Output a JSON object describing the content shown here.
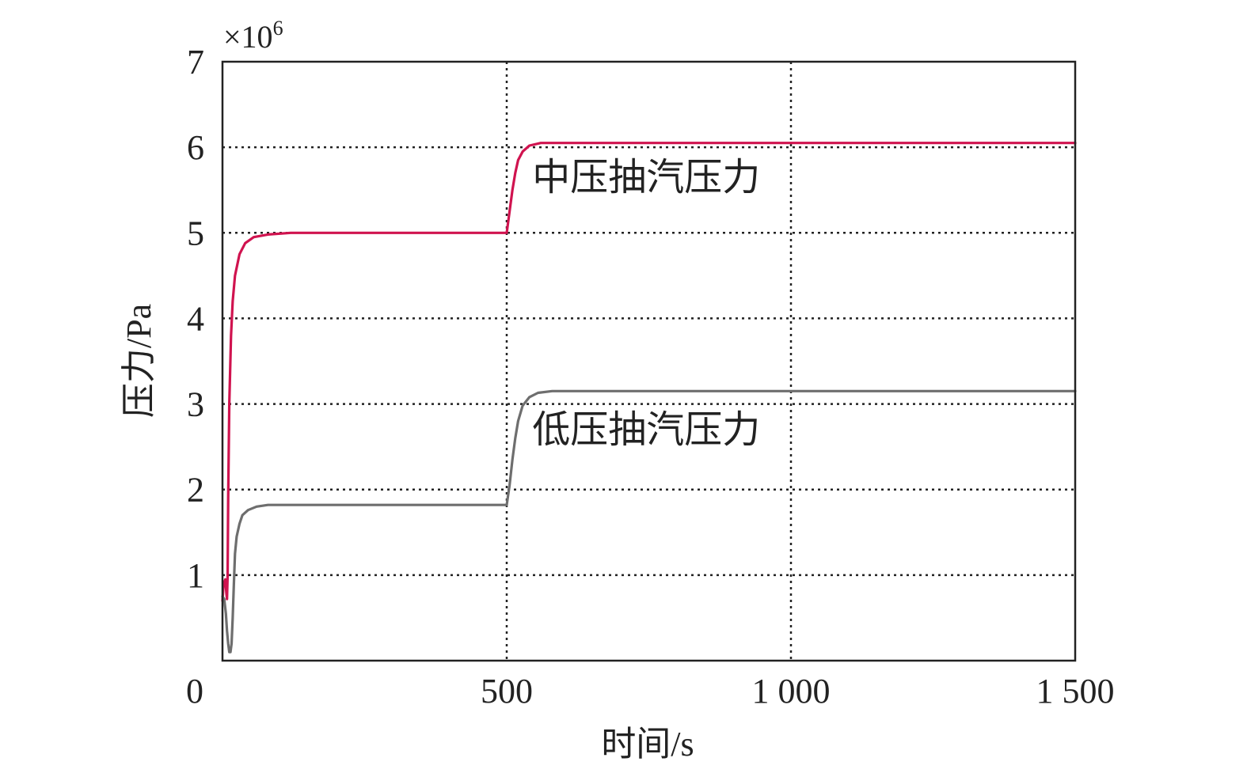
{
  "chart_data": {
    "type": "line",
    "xlabel": "时间/s",
    "ylabel": "压力/Pa",
    "y_multiplier": {
      "base": "×10",
      "exponent": "6"
    },
    "xlim": [
      0,
      1500
    ],
    "ylim": [
      0,
      7
    ],
    "x_ticks": [
      {
        "value": 0,
        "label": "0"
      },
      {
        "value": 500,
        "label": "500"
      },
      {
        "value": 1000,
        "label": "1 000"
      },
      {
        "value": 1500,
        "label": "1 500"
      }
    ],
    "y_ticks": [
      {
        "value": 1,
        "label": "1"
      },
      {
        "value": 2,
        "label": "2"
      },
      {
        "value": 3,
        "label": "3"
      },
      {
        "value": 4,
        "label": "4"
      },
      {
        "value": 5,
        "label": "5"
      },
      {
        "value": 6,
        "label": "6"
      },
      {
        "value": 7,
        "label": "7"
      }
    ],
    "grid": true,
    "grid_style": "dotted",
    "series": [
      {
        "name": "中压抽汽压力",
        "color": "#d0134f",
        "label_at": [
          545,
          5.5
        ],
        "points": [
          [
            0,
            0.7
          ],
          [
            2,
            0.9
          ],
          [
            5,
            0.95
          ],
          [
            7,
            0.78
          ],
          [
            8,
            0.72
          ],
          [
            9,
            1.0
          ],
          [
            10,
            1.9
          ],
          [
            12,
            3.0
          ],
          [
            15,
            3.8
          ],
          [
            18,
            4.2
          ],
          [
            22,
            4.5
          ],
          [
            30,
            4.75
          ],
          [
            40,
            4.88
          ],
          [
            55,
            4.95
          ],
          [
            80,
            4.98
          ],
          [
            120,
            5.0
          ],
          [
            300,
            5.0
          ],
          [
            499,
            5.0
          ],
          [
            500,
            5.0
          ],
          [
            505,
            5.25
          ],
          [
            510,
            5.5
          ],
          [
            515,
            5.7
          ],
          [
            520,
            5.85
          ],
          [
            528,
            5.95
          ],
          [
            540,
            6.02
          ],
          [
            560,
            6.05
          ],
          [
            600,
            6.05
          ],
          [
            1000,
            6.05
          ],
          [
            1500,
            6.05
          ]
        ]
      },
      {
        "name": "低压抽汽压力",
        "color": "#6e6e6e",
        "label_at": [
          545,
          2.55
        ],
        "points": [
          [
            0,
            0.75
          ],
          [
            3,
            0.72
          ],
          [
            6,
            0.55
          ],
          [
            8,
            0.35
          ],
          [
            10,
            0.2
          ],
          [
            12,
            0.1
          ],
          [
            14,
            0.1
          ],
          [
            16,
            0.2
          ],
          [
            18,
            0.5
          ],
          [
            20,
            0.9
          ],
          [
            22,
            1.25
          ],
          [
            25,
            1.45
          ],
          [
            30,
            1.6
          ],
          [
            35,
            1.7
          ],
          [
            45,
            1.76
          ],
          [
            60,
            1.8
          ],
          [
            80,
            1.82
          ],
          [
            120,
            1.82
          ],
          [
            300,
            1.82
          ],
          [
            499,
            1.82
          ],
          [
            500,
            1.82
          ],
          [
            505,
            2.05
          ],
          [
            510,
            2.35
          ],
          [
            515,
            2.6
          ],
          [
            520,
            2.8
          ],
          [
            528,
            2.98
          ],
          [
            540,
            3.08
          ],
          [
            555,
            3.13
          ],
          [
            580,
            3.15
          ],
          [
            700,
            3.15
          ],
          [
            1000,
            3.15
          ],
          [
            1500,
            3.15
          ]
        ]
      }
    ]
  }
}
